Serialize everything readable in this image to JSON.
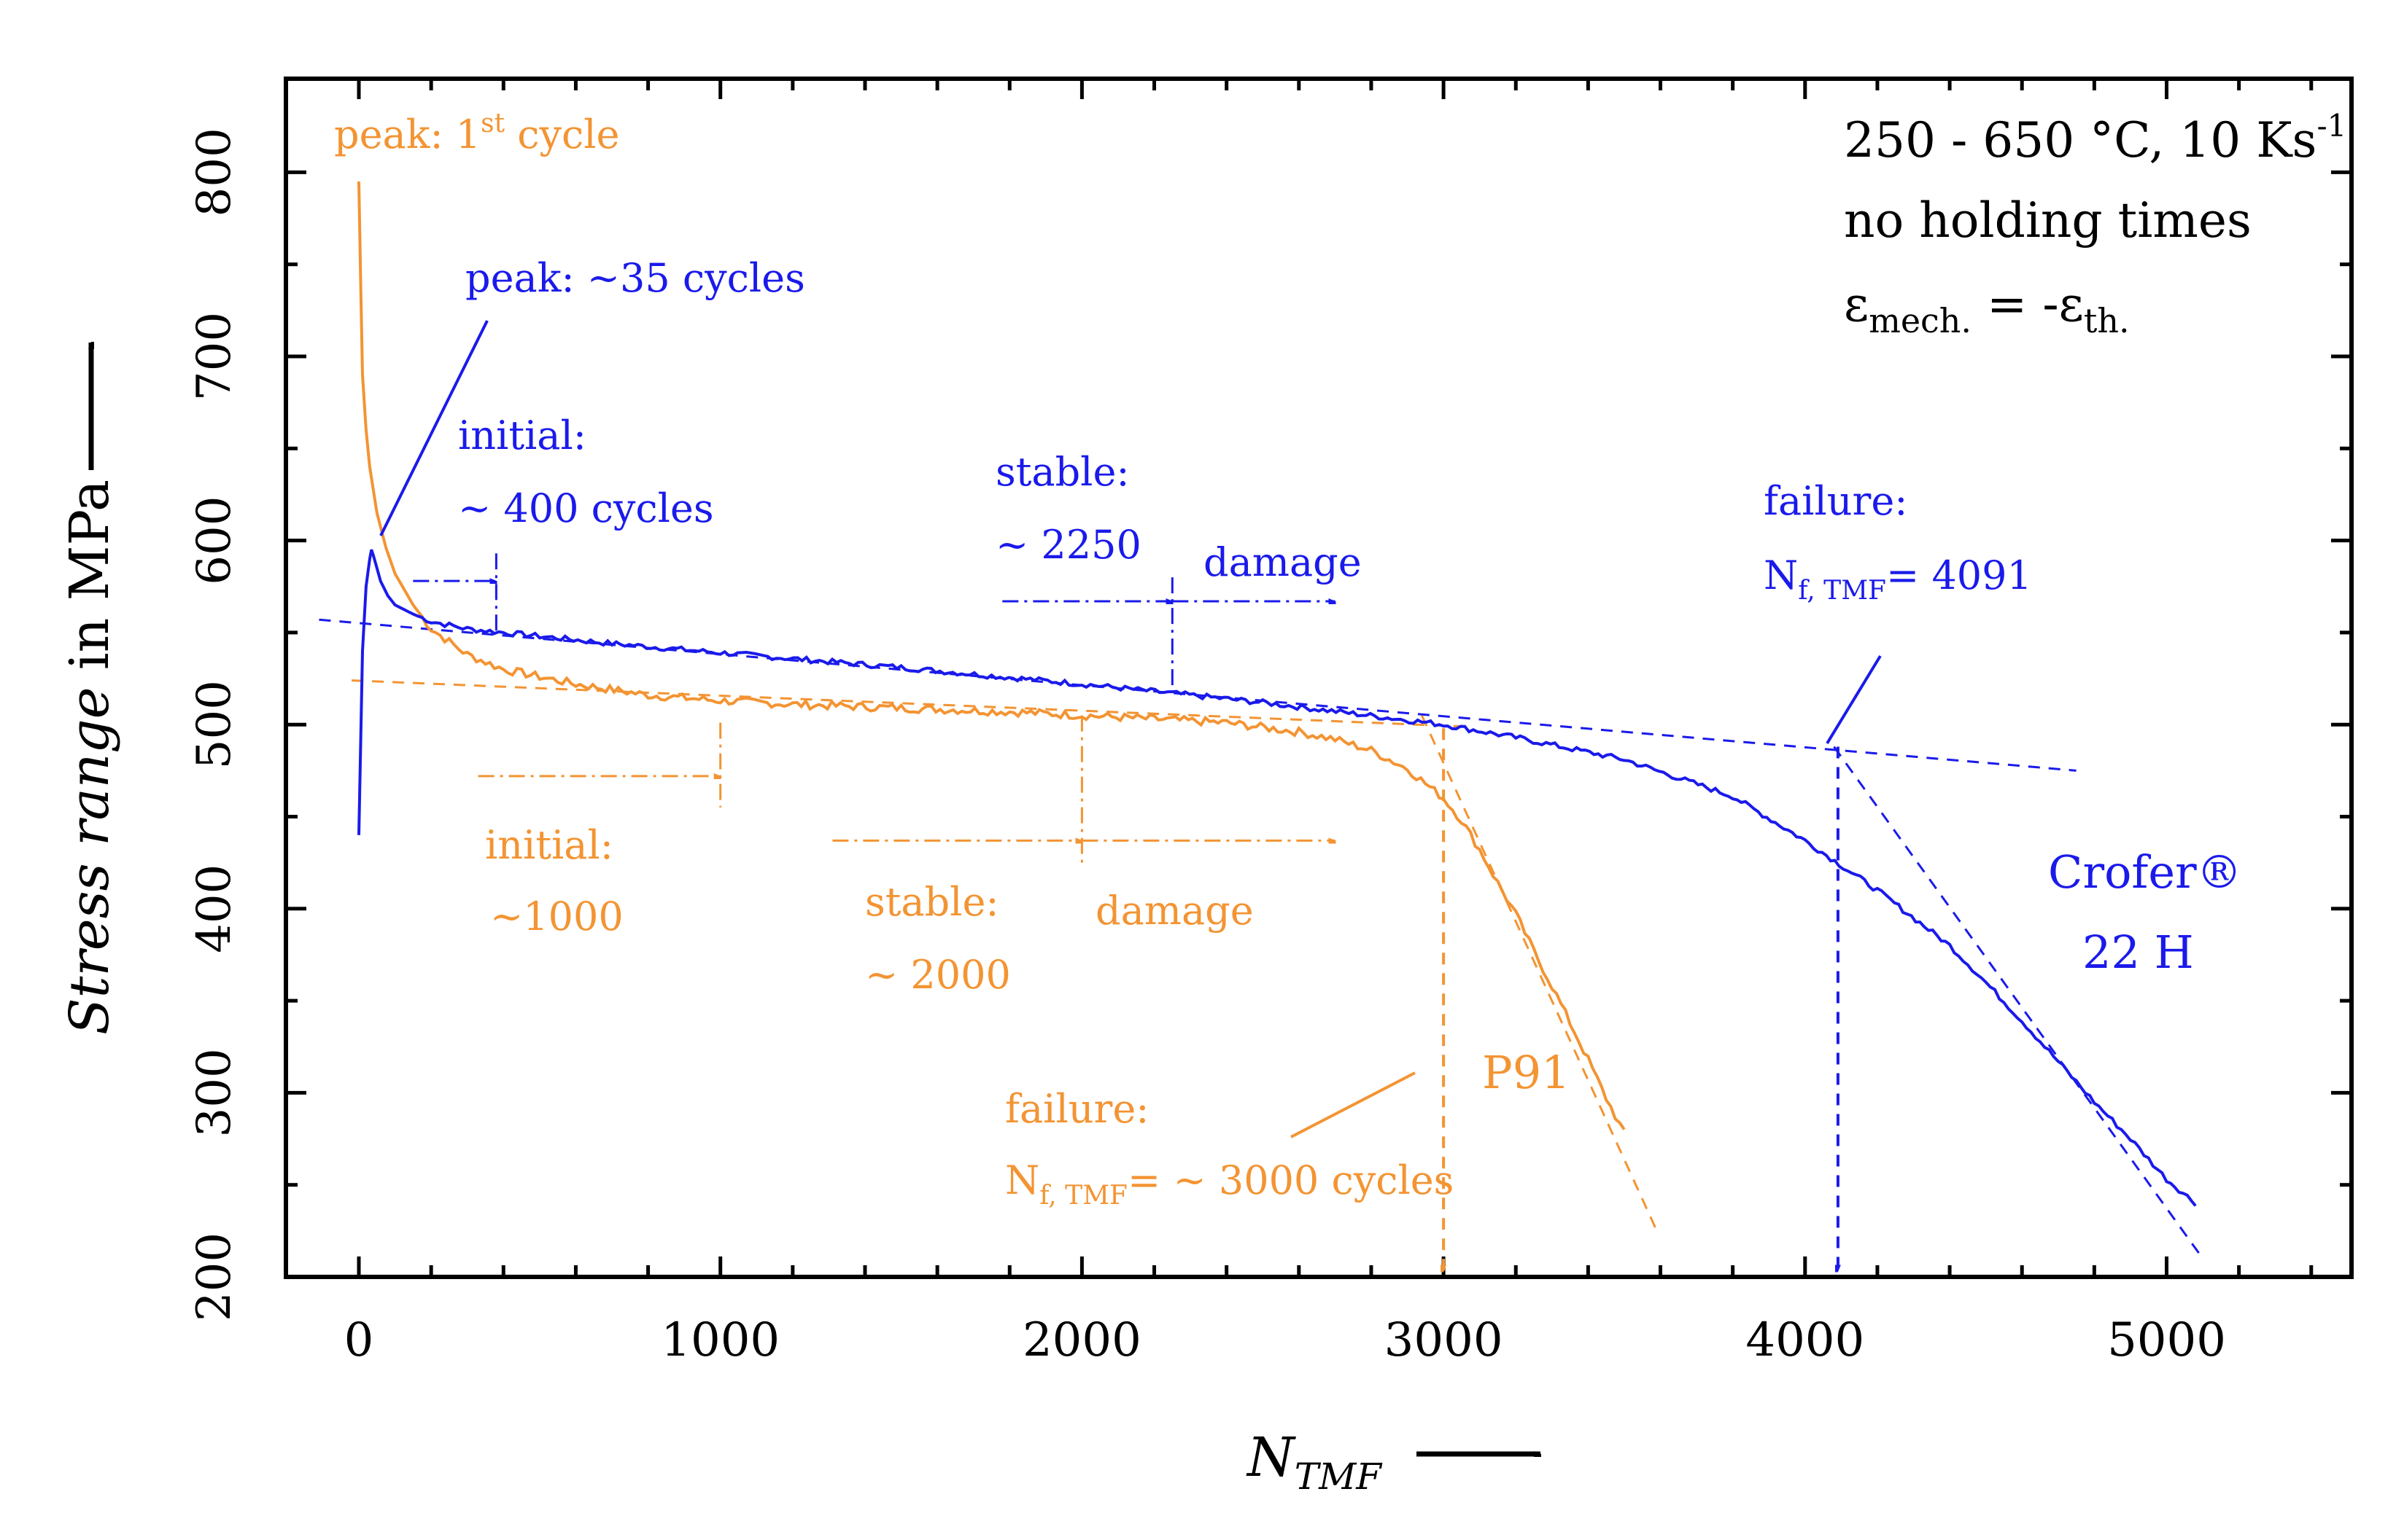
{
  "colors": {
    "orange": "#F39433",
    "blue": "#1A1AEB",
    "black": "#000000"
  },
  "chart_data": {
    "type": "line",
    "xlabel_main": "N",
    "xlabel_sub": "TMF",
    "ylabel_italic": "Stress range",
    "ylabel_rest": " in MPa",
    "xlim": [
      -200,
      5500
    ],
    "ylim": [
      200,
      830
    ],
    "xticks": [
      0,
      1000,
      2000,
      3000,
      4000,
      5000
    ],
    "yticks": [
      200,
      300,
      400,
      500,
      600,
      700,
      800
    ],
    "xtick_labels": [
      "0",
      "1000",
      "2000",
      "3000",
      "4000",
      "5000"
    ],
    "ytick_labels": [
      "200",
      "300",
      "400",
      "500",
      "600",
      "700",
      "800"
    ],
    "series": [
      {
        "name": "P91",
        "color": "orange",
        "x": [
          0,
          5,
          10,
          20,
          30,
          50,
          75,
          100,
          150,
          200,
          300,
          400,
          500,
          600,
          800,
          1000,
          1200,
          1500,
          1800,
          2000,
          2200,
          2400,
          2600,
          2700,
          2800,
          2900,
          3000,
          3050,
          3100,
          3150,
          3200,
          3250,
          3300,
          3350,
          3400,
          3450,
          3500
        ],
        "y": [
          795,
          740,
          690,
          660,
          640,
          615,
          596,
          582,
          565,
          552,
          538,
          530,
          526,
          522,
          516,
          513,
          511,
          509,
          507,
          505,
          503,
          501,
          496,
          492,
          486,
          476,
          460,
          448,
          432,
          414,
          397,
          377,
          358,
          338,
          318,
          297,
          278
        ]
      },
      {
        "name": "Crofer 22 H",
        "color": "blue",
        "x": [
          0,
          10,
          20,
          30,
          35,
          40,
          50,
          60,
          80,
          100,
          150,
          200,
          300,
          400,
          500,
          700,
          1000,
          1500,
          2000,
          2250,
          2500,
          3000,
          3200,
          3500,
          3800,
          4000,
          4200,
          4400,
          4500,
          4600,
          4700,
          4800,
          4900,
          5000,
          5080
        ],
        "y": [
          440,
          540,
          575,
          590,
          595,
          592,
          585,
          578,
          570,
          565,
          560,
          556,
          552,
          550,
          548,
          544,
          539,
          531,
          522,
          517,
          512,
          500,
          493,
          481,
          461,
          437,
          410,
          380,
          360,
          339,
          317,
          295,
          275,
          253,
          240
        ]
      }
    ],
    "annotations": {
      "p91_peak": {
        "label": "peak: 1",
        "sup": "st",
        "rest": " cycle"
      },
      "p91_initial": {
        "title": "initial:",
        "value": "~1000"
      },
      "p91_stable": {
        "title": "stable:",
        "value": "~ 2000"
      },
      "p91_damage": {
        "label": "damage"
      },
      "p91_failure": {
        "title": "failure:",
        "n": "N",
        "sub": "f, TMF",
        "rest": "= ~ 3000 cycles"
      },
      "p91_name": {
        "label": "P91"
      },
      "crofer_peak": {
        "label": "peak: ~35 cycles"
      },
      "crofer_initial": {
        "title": "initial:",
        "value": "~ 400 cycles"
      },
      "crofer_stable": {
        "title": "stable:",
        "value": "~ 2250"
      },
      "crofer_damage": {
        "label": "damage"
      },
      "crofer_failure": {
        "title": "failure:",
        "n": "N",
        "sub": "f, TMF",
        "rest": "= 4091"
      },
      "crofer_name": {
        "line1": "Crofer®",
        "line2": "22 H"
      },
      "conditions": {
        "line1": "250 - 650 °C, 10 Ks",
        "line1_sup": "-1",
        "line2": "no holding times",
        "eps": "ε",
        "mech_sub": "mech.",
        "middle": " = -ε",
        "th_sub": "th."
      }
    }
  }
}
